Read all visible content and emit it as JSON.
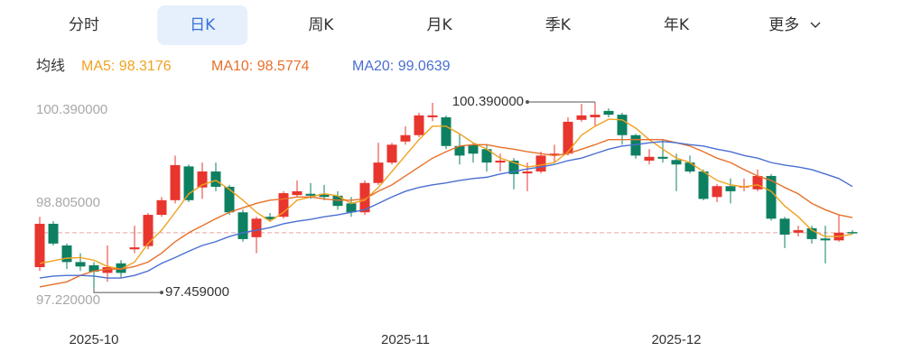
{
  "tabs": [
    {
      "label": "分时"
    },
    {
      "label": "日K",
      "active": true
    },
    {
      "label": "周K"
    },
    {
      "label": "月K"
    },
    {
      "label": "季K"
    },
    {
      "label": "年K"
    },
    {
      "label": "更多"
    }
  ],
  "chart_data": {
    "type": "candlestick",
    "ma_label": "均线",
    "categories": [
      null,
      null,
      null,
      null,
      "2025-10",
      null,
      null,
      null,
      null,
      null,
      null,
      null,
      null,
      null,
      null,
      null,
      null,
      null,
      null,
      null,
      null,
      null,
      null,
      null,
      null,
      null,
      null,
      "2025-11",
      null,
      null,
      null,
      null,
      null,
      null,
      null,
      null,
      null,
      null,
      null,
      null,
      null,
      null,
      null,
      null,
      null,
      null,
      null,
      "2025-12",
      null,
      null,
      null,
      null,
      null,
      null,
      null,
      null,
      null,
      null,
      null,
      null,
      null
    ],
    "open": [
      97.8,
      98.48,
      98.14,
      97.88,
      97.83,
      97.71,
      97.86,
      98.08,
      98.13,
      98.62,
      98.85,
      99.38,
      99.05,
      99.3,
      99.06,
      98.66,
      98.27,
      98.59,
      98.59,
      98.93,
      98.95,
      98.95,
      98.92,
      98.8,
      98.66,
      99.12,
      99.44,
      99.77,
      99.87,
      100.15,
      100.15,
      99.7,
      99.72,
      99.65,
      99.44,
      99.47,
      99.27,
      99.3,
      99.55,
      99.58,
      100.11,
      100.15,
      100.25,
      100.19,
      99.87,
      99.47,
      99.53,
      99.48,
      99.44,
      99.3,
      98.9,
      99.07,
      99.05,
      99.02,
      99.23,
      98.56,
      98.34,
      98.41,
      98.25,
      98.22,
      98.35
    ],
    "high": [
      98.59,
      98.52,
      98.17,
      98.02,
      97.88,
      98.14,
      97.91,
      98.45,
      98.65,
      98.9,
      99.55,
      99.41,
      99.44,
      99.44,
      99.09,
      98.7,
      98.59,
      98.65,
      98.99,
      99.16,
      99.12,
      99.09,
      98.99,
      98.9,
      99.16,
      99.75,
      99.75,
      100.01,
      100.22,
      100.376,
      100.18,
      99.89,
      99.75,
      99.72,
      99.58,
      99.51,
      99.44,
      99.61,
      99.72,
      100.15,
      100.362,
      100.39,
      100.29,
      100.22,
      99.89,
      99.65,
      99.8,
      99.58,
      99.55,
      99.33,
      99.1,
      99.19,
      99.19,
      99.33,
      99.26,
      98.59,
      98.45,
      98.45,
      98.45,
      98.62,
      98.38
    ],
    "low": [
      97.74,
      98.14,
      97.77,
      97.74,
      97.459,
      97.57,
      97.63,
      98.02,
      98.08,
      98.59,
      98.8,
      98.82,
      98.87,
      98.99,
      98.62,
      98.2,
      98.02,
      98.51,
      98.56,
      98.9,
      98.87,
      98.85,
      98.7,
      98.59,
      98.62,
      99.09,
      99.41,
      99.72,
      99.84,
      100.09,
      99.65,
      99.41,
      99.44,
      99.3,
      99.3,
      99.02,
      98.99,
      99.27,
      99.44,
      99.55,
      100.08,
      100.01,
      100.15,
      99.72,
      99.5,
      99.41,
      99.44,
      98.99,
      99.27,
      98.85,
      98.82,
      98.8,
      98.99,
      98.99,
      98.53,
      98.1,
      98.28,
      98.17,
      97.86,
      98.2,
      98.32
    ],
    "close": [
      98.48,
      98.17,
      97.88,
      97.81,
      97.73,
      97.8,
      97.71,
      98.11,
      98.62,
      98.85,
      99.4,
      98.85,
      99.3,
      99.06,
      98.66,
      98.24,
      98.56,
      98.55,
      98.96,
      98.99,
      98.92,
      98.9,
      98.76,
      98.66,
      99.12,
      99.44,
      99.72,
      99.87,
      100.18,
      100.18,
      99.7,
      99.55,
      99.58,
      99.44,
      99.47,
      99.26,
      99.3,
      99.55,
      99.58,
      100.08,
      100.18,
      100.19,
      100.19,
      99.87,
      99.55,
      99.53,
      99.5,
      99.41,
      99.3,
      98.87,
      99.07,
      98.99,
      99.07,
      99.23,
      98.56,
      98.31,
      98.38,
      98.24,
      98.22,
      98.34,
      98.34
    ],
    "up_color": "#e8352e",
    "down_color": "#0e8062",
    "series": [
      {
        "name": "MA5: 98.3176",
        "color": "#f0a21e",
        "values": [
          97.86,
          97.9,
          97.94,
          97.95,
          97.91,
          97.81,
          97.77,
          97.88,
          98.17,
          98.38,
          98.66,
          98.95,
          99.09,
          99.16,
          99.02,
          98.85,
          98.66,
          98.52,
          98.66,
          98.85,
          98.9,
          98.95,
          98.92,
          98.8,
          98.85,
          99.05,
          99.3,
          99.55,
          99.8,
          100.01,
          100.01,
          99.89,
          99.75,
          99.65,
          99.51,
          99.44,
          99.37,
          99.4,
          99.44,
          99.61,
          99.87,
          100.01,
          100.12,
          100.11,
          99.98,
          99.8,
          99.65,
          99.51,
          99.44,
          99.3,
          99.16,
          99.09,
          99.06,
          99.09,
          98.99,
          98.76,
          98.59,
          98.38,
          98.28,
          98.28,
          98.3176
        ]
      },
      {
        "name": "MA10: 98.5774",
        "color": "#e8702a",
        "values": [
          97.49,
          97.53,
          97.57,
          97.67,
          97.74,
          97.77,
          97.77,
          97.81,
          97.88,
          98.02,
          98.2,
          98.34,
          98.45,
          98.56,
          98.66,
          98.73,
          98.8,
          98.85,
          98.87,
          98.9,
          98.9,
          98.87,
          98.85,
          98.85,
          98.87,
          98.99,
          99.09,
          99.23,
          99.37,
          99.51,
          99.61,
          99.7,
          99.72,
          99.72,
          99.68,
          99.65,
          99.61,
          99.58,
          99.55,
          99.58,
          99.65,
          99.72,
          99.8,
          99.8,
          99.8,
          99.8,
          99.8,
          99.75,
          99.7,
          99.61,
          99.51,
          99.44,
          99.33,
          99.23,
          99.16,
          99.05,
          98.95,
          98.8,
          98.7,
          98.62,
          98.5774
        ]
      },
      {
        "name": "MA20: 99.0639",
        "color": "#4a6fd0",
        "values": [
          97.63,
          97.66,
          97.67,
          97.67,
          97.66,
          97.63,
          97.63,
          97.67,
          97.74,
          97.86,
          97.95,
          98.05,
          98.14,
          98.2,
          98.28,
          98.34,
          98.38,
          98.42,
          98.48,
          98.52,
          98.55,
          98.59,
          98.62,
          98.66,
          98.7,
          98.8,
          98.9,
          98.99,
          99.05,
          99.09,
          99.12,
          99.16,
          99.19,
          99.21,
          99.26,
          99.3,
          99.34,
          99.37,
          99.41,
          99.47,
          99.51,
          99.58,
          99.65,
          99.7,
          99.72,
          99.75,
          99.77,
          99.75,
          99.72,
          99.7,
          99.65,
          99.61,
          99.55,
          99.51,
          99.44,
          99.4,
          99.37,
          99.33,
          99.26,
          99.19,
          99.0639
        ]
      }
    ],
    "ylim": [
      97.22,
      100.39
    ],
    "yticks": [
      {
        "value": 100.39,
        "label": "100.390000"
      },
      {
        "value": 98.805,
        "label": "98.805000"
      },
      {
        "value": 97.22,
        "label": "97.220000"
      }
    ],
    "annotations": [
      {
        "label": "100.390000",
        "value": 100.39,
        "kind": "max"
      },
      {
        "label": "97.459000",
        "value": 97.459,
        "kind": "min"
      }
    ]
  }
}
